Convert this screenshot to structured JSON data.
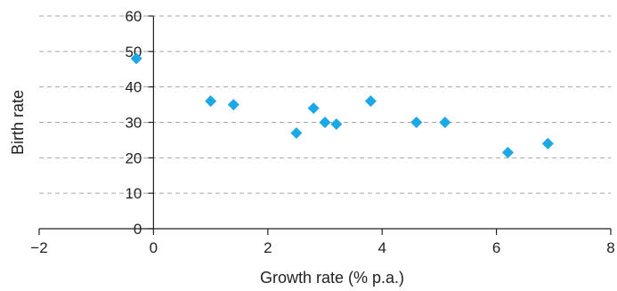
{
  "chart_data": {
    "type": "scatter",
    "title": "",
    "xlabel": "Growth rate (% p.a.)",
    "ylabel": "Birth rate",
    "xlim": [
      -2,
      8
    ],
    "ylim": [
      0,
      60
    ],
    "x_ticks": [
      -2,
      0,
      2,
      4,
      6,
      8
    ],
    "x_tick_labels": [
      "−2",
      "0",
      "2",
      "4",
      "6",
      "8"
    ],
    "y_ticks": [
      0,
      10,
      20,
      30,
      40,
      50,
      60
    ],
    "y_tick_labels": [
      "0",
      "10",
      "20",
      "30",
      "40",
      "50",
      "60"
    ],
    "grid": "horizontal dashed",
    "legend": "none",
    "marker": "diamond",
    "series": [
      {
        "color": "#1ca8e6",
        "points": [
          {
            "x": -0.3,
            "y": 48
          },
          {
            "x": 1.0,
            "y": 36
          },
          {
            "x": 1.4,
            "y": 35
          },
          {
            "x": 2.5,
            "y": 27
          },
          {
            "x": 2.8,
            "y": 34
          },
          {
            "x": 3.0,
            "y": 30
          },
          {
            "x": 3.2,
            "y": 29.5
          },
          {
            "x": 3.8,
            "y": 36
          },
          {
            "x": 4.6,
            "y": 30
          },
          {
            "x": 5.1,
            "y": 30
          },
          {
            "x": 6.2,
            "y": 21.5
          },
          {
            "x": 6.9,
            "y": 24
          }
        ]
      }
    ],
    "colors": {
      "axis": "#222222",
      "grid": "#a6a6a6",
      "text": "#222222"
    }
  }
}
